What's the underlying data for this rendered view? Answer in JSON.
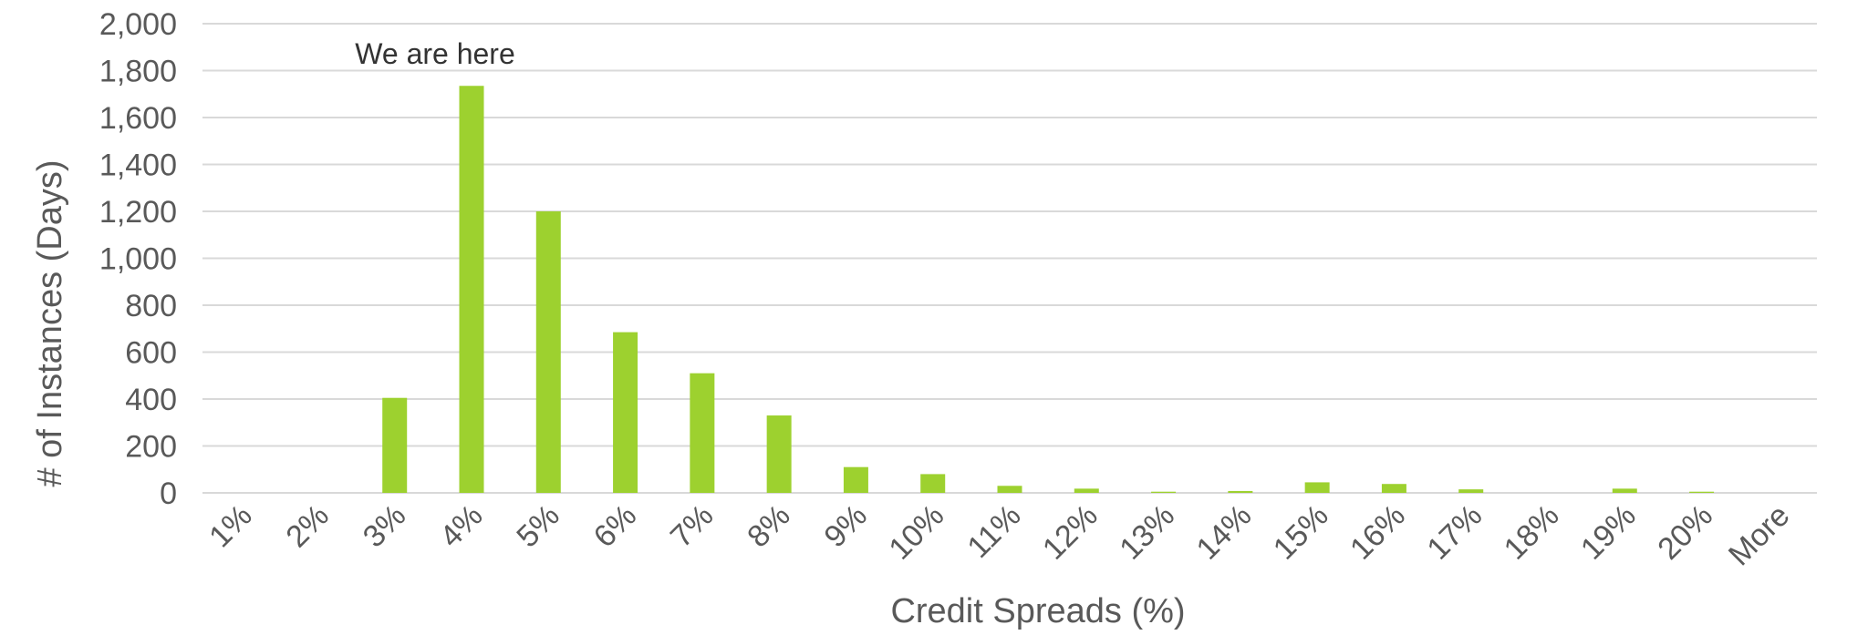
{
  "chart_data": {
    "type": "bar",
    "categories": [
      "1%",
      "2%",
      "3%",
      "4%",
      "5%",
      "6%",
      "7%",
      "8%",
      "9%",
      "10%",
      "11%",
      "12%",
      "13%",
      "14%",
      "15%",
      "16%",
      "17%",
      "18%",
      "19%",
      "20%",
      "More"
    ],
    "values": [
      0,
      0,
      405,
      1735,
      1200,
      685,
      510,
      330,
      110,
      80,
      30,
      18,
      5,
      8,
      45,
      38,
      15,
      0,
      18,
      5,
      0
    ],
    "xlabel": "Credit Spreads (%)",
    "ylabel": "# of Instances (Days)",
    "ylim": [
      0,
      2000
    ],
    "yticks": [
      0,
      200,
      400,
      600,
      800,
      1000,
      1200,
      1400,
      1600,
      1800,
      2000
    ],
    "ytick_labels": [
      "0",
      "200",
      "400",
      "600",
      "800",
      "1,000",
      "1,200",
      "1,400",
      "1,600",
      "1,800",
      "2,000"
    ],
    "grid": true,
    "bar_color": "#9dd12f",
    "grid_color": "#d9d9d9",
    "annotations": [
      {
        "text": "We are here",
        "category": "4%"
      }
    ]
  }
}
